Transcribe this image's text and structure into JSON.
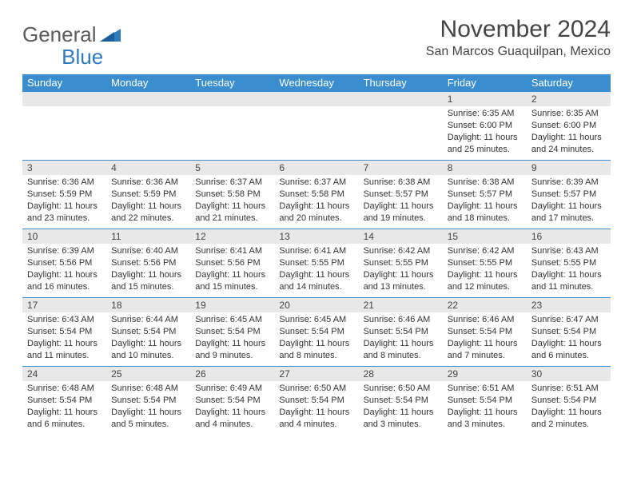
{
  "brand": {
    "text1": "General",
    "text2": "Blue"
  },
  "title": "November 2024",
  "location": "San Marcos Guaquilpan, Mexico",
  "colors": {
    "header_bg": "#3a8dcf",
    "header_text": "#ffffff",
    "daynum_bg": "#e8e8e8",
    "border": "#3a8dcf",
    "text": "#333333",
    "brand_gray": "#5a5a5a",
    "brand_blue": "#2f7bbf",
    "background": "#ffffff"
  },
  "typography": {
    "title_fontsize": 30,
    "location_fontsize": 16,
    "dayheader_fontsize": 13,
    "daynum_fontsize": 12,
    "body_fontsize": 11
  },
  "day_headers": [
    "Sunday",
    "Monday",
    "Tuesday",
    "Wednesday",
    "Thursday",
    "Friday",
    "Saturday"
  ],
  "weeks": [
    [
      null,
      null,
      null,
      null,
      null,
      {
        "n": "1",
        "sunrise": "Sunrise: 6:35 AM",
        "sunset": "Sunset: 6:00 PM",
        "daylight": "Daylight: 11 hours and 25 minutes."
      },
      {
        "n": "2",
        "sunrise": "Sunrise: 6:35 AM",
        "sunset": "Sunset: 6:00 PM",
        "daylight": "Daylight: 11 hours and 24 minutes."
      }
    ],
    [
      {
        "n": "3",
        "sunrise": "Sunrise: 6:36 AM",
        "sunset": "Sunset: 5:59 PM",
        "daylight": "Daylight: 11 hours and 23 minutes."
      },
      {
        "n": "4",
        "sunrise": "Sunrise: 6:36 AM",
        "sunset": "Sunset: 5:59 PM",
        "daylight": "Daylight: 11 hours and 22 minutes."
      },
      {
        "n": "5",
        "sunrise": "Sunrise: 6:37 AM",
        "sunset": "Sunset: 5:58 PM",
        "daylight": "Daylight: 11 hours and 21 minutes."
      },
      {
        "n": "6",
        "sunrise": "Sunrise: 6:37 AM",
        "sunset": "Sunset: 5:58 PM",
        "daylight": "Daylight: 11 hours and 20 minutes."
      },
      {
        "n": "7",
        "sunrise": "Sunrise: 6:38 AM",
        "sunset": "Sunset: 5:57 PM",
        "daylight": "Daylight: 11 hours and 19 minutes."
      },
      {
        "n": "8",
        "sunrise": "Sunrise: 6:38 AM",
        "sunset": "Sunset: 5:57 PM",
        "daylight": "Daylight: 11 hours and 18 minutes."
      },
      {
        "n": "9",
        "sunrise": "Sunrise: 6:39 AM",
        "sunset": "Sunset: 5:57 PM",
        "daylight": "Daylight: 11 hours and 17 minutes."
      }
    ],
    [
      {
        "n": "10",
        "sunrise": "Sunrise: 6:39 AM",
        "sunset": "Sunset: 5:56 PM",
        "daylight": "Daylight: 11 hours and 16 minutes."
      },
      {
        "n": "11",
        "sunrise": "Sunrise: 6:40 AM",
        "sunset": "Sunset: 5:56 PM",
        "daylight": "Daylight: 11 hours and 15 minutes."
      },
      {
        "n": "12",
        "sunrise": "Sunrise: 6:41 AM",
        "sunset": "Sunset: 5:56 PM",
        "daylight": "Daylight: 11 hours and 15 minutes."
      },
      {
        "n": "13",
        "sunrise": "Sunrise: 6:41 AM",
        "sunset": "Sunset: 5:55 PM",
        "daylight": "Daylight: 11 hours and 14 minutes."
      },
      {
        "n": "14",
        "sunrise": "Sunrise: 6:42 AM",
        "sunset": "Sunset: 5:55 PM",
        "daylight": "Daylight: 11 hours and 13 minutes."
      },
      {
        "n": "15",
        "sunrise": "Sunrise: 6:42 AM",
        "sunset": "Sunset: 5:55 PM",
        "daylight": "Daylight: 11 hours and 12 minutes."
      },
      {
        "n": "16",
        "sunrise": "Sunrise: 6:43 AM",
        "sunset": "Sunset: 5:55 PM",
        "daylight": "Daylight: 11 hours and 11 minutes."
      }
    ],
    [
      {
        "n": "17",
        "sunrise": "Sunrise: 6:43 AM",
        "sunset": "Sunset: 5:54 PM",
        "daylight": "Daylight: 11 hours and 11 minutes."
      },
      {
        "n": "18",
        "sunrise": "Sunrise: 6:44 AM",
        "sunset": "Sunset: 5:54 PM",
        "daylight": "Daylight: 11 hours and 10 minutes."
      },
      {
        "n": "19",
        "sunrise": "Sunrise: 6:45 AM",
        "sunset": "Sunset: 5:54 PM",
        "daylight": "Daylight: 11 hours and 9 minutes."
      },
      {
        "n": "20",
        "sunrise": "Sunrise: 6:45 AM",
        "sunset": "Sunset: 5:54 PM",
        "daylight": "Daylight: 11 hours and 8 minutes."
      },
      {
        "n": "21",
        "sunrise": "Sunrise: 6:46 AM",
        "sunset": "Sunset: 5:54 PM",
        "daylight": "Daylight: 11 hours and 8 minutes."
      },
      {
        "n": "22",
        "sunrise": "Sunrise: 6:46 AM",
        "sunset": "Sunset: 5:54 PM",
        "daylight": "Daylight: 11 hours and 7 minutes."
      },
      {
        "n": "23",
        "sunrise": "Sunrise: 6:47 AM",
        "sunset": "Sunset: 5:54 PM",
        "daylight": "Daylight: 11 hours and 6 minutes."
      }
    ],
    [
      {
        "n": "24",
        "sunrise": "Sunrise: 6:48 AM",
        "sunset": "Sunset: 5:54 PM",
        "daylight": "Daylight: 11 hours and 6 minutes."
      },
      {
        "n": "25",
        "sunrise": "Sunrise: 6:48 AM",
        "sunset": "Sunset: 5:54 PM",
        "daylight": "Daylight: 11 hours and 5 minutes."
      },
      {
        "n": "26",
        "sunrise": "Sunrise: 6:49 AM",
        "sunset": "Sunset: 5:54 PM",
        "daylight": "Daylight: 11 hours and 4 minutes."
      },
      {
        "n": "27",
        "sunrise": "Sunrise: 6:50 AM",
        "sunset": "Sunset: 5:54 PM",
        "daylight": "Daylight: 11 hours and 4 minutes."
      },
      {
        "n": "28",
        "sunrise": "Sunrise: 6:50 AM",
        "sunset": "Sunset: 5:54 PM",
        "daylight": "Daylight: 11 hours and 3 minutes."
      },
      {
        "n": "29",
        "sunrise": "Sunrise: 6:51 AM",
        "sunset": "Sunset: 5:54 PM",
        "daylight": "Daylight: 11 hours and 3 minutes."
      },
      {
        "n": "30",
        "sunrise": "Sunrise: 6:51 AM",
        "sunset": "Sunset: 5:54 PM",
        "daylight": "Daylight: 11 hours and 2 minutes."
      }
    ]
  ]
}
